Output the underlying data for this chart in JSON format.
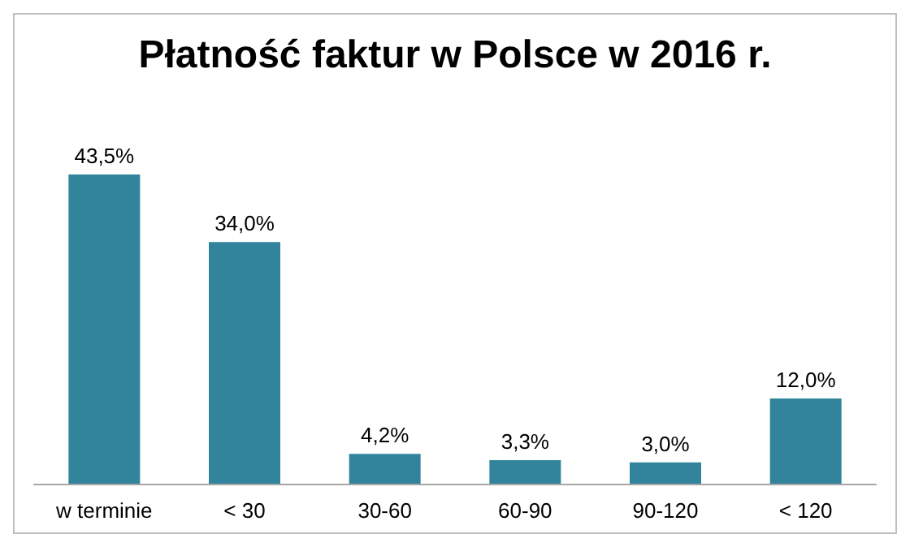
{
  "chart_data": {
    "type": "bar",
    "title": "Płatność faktur w Polsce w 2016 r.",
    "categories": [
      "w terminie",
      "< 30",
      "30-60",
      "60-90",
      "90-120",
      "< 120"
    ],
    "values": [
      43.5,
      34.0,
      4.2,
      3.3,
      3.0,
      12.0
    ],
    "value_labels": [
      "43,5%",
      "34,0%",
      "4,2%",
      "3,3%",
      "3,0%",
      "12,0%"
    ],
    "color": "#31849b"
  }
}
